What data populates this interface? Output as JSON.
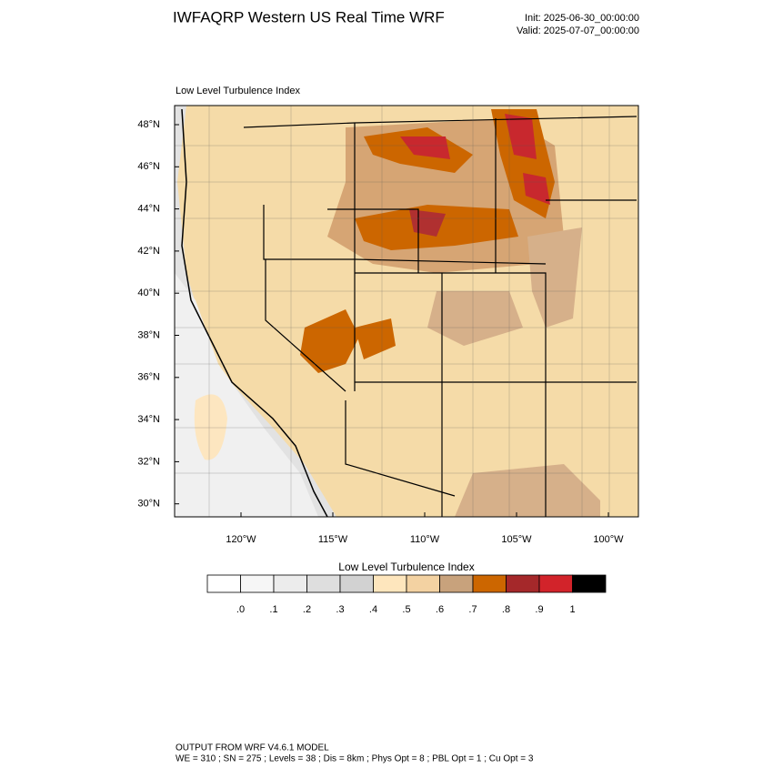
{
  "header": {
    "title": "IWFAQRP Western US Real Time WRF",
    "init": "Init: 2025-06-30_00:00:00",
    "valid": "Valid: 2025-07-07_00:00:00"
  },
  "map": {
    "label": "Low Level Turbulence Index",
    "lat_labels": [
      "48°N",
      "46°N",
      "44°N",
      "42°N",
      "40°N",
      "38°N",
      "36°N",
      "34°N",
      "32°N",
      "30°N"
    ],
    "lon_labels": [
      "120°W",
      "115°W",
      "110°W",
      "105°W",
      "100°W"
    ]
  },
  "colorbar": {
    "title": "Low Level Turbulence Index",
    "colors": [
      "#ffffff",
      "#f6f6f6",
      "#ececec",
      "#dedede",
      "#d2d2d2",
      "#fee6bd",
      "#f3d2a2",
      "#c8a27c",
      "#cc6600",
      "#a5282a",
      "#d2232a",
      "#000000"
    ],
    "labels": [
      ".0",
      ".1",
      ".2",
      ".3",
      ".4",
      ".5",
      ".6",
      ".7",
      ".8",
      ".9",
      "1"
    ]
  },
  "footer": {
    "line1": "OUTPUT FROM WRF V4.6.1 MODEL",
    "line2": "WE = 310 ; SN = 275 ; Levels = 38 ; Dis = 8km ; Phys Opt = 8 ; PBL Opt = 1 ; Cu Opt = 3"
  }
}
